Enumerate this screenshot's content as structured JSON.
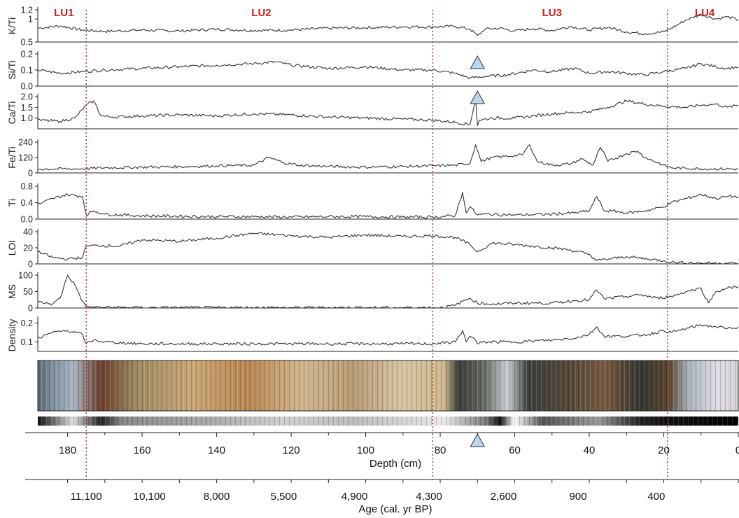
{
  "chart_data": {
    "type": "line",
    "x_axis": {
      "label": "Depth (cm)",
      "reversed": true,
      "range": [
        0,
        188
      ],
      "ticks": [
        180,
        160,
        140,
        120,
        100,
        80,
        60,
        40,
        20,
        0
      ]
    },
    "age_axis": {
      "label": "Age (cal. yr BP)",
      "ticks": [
        {
          "depth": 175,
          "label": "11,100"
        },
        {
          "depth": 158,
          "label": "10,100"
        },
        {
          "depth": 140,
          "label": "8,000"
        },
        {
          "depth": 122,
          "label": "5,500"
        },
        {
          "depth": 103,
          "label": "4,900"
        },
        {
          "depth": 83,
          "label": "4,300"
        },
        {
          "depth": 63,
          "label": "2,600"
        },
        {
          "depth": 43,
          "label": "900"
        },
        {
          "depth": 22,
          "label": "400"
        }
      ]
    },
    "units": [
      {
        "label": "LU1",
        "depth": 181
      },
      {
        "label": "LU2",
        "depth": 128
      },
      {
        "label": "LU3",
        "depth": 50
      },
      {
        "label": "LU4",
        "depth": 9
      }
    ],
    "boundaries": [
      175,
      82,
      19
    ],
    "markers": {
      "depth": 70,
      "label": "triangle"
    },
    "series": [
      {
        "name": "K/Ti",
        "ylim": [
          0.5,
          1.2
        ],
        "ticks": [
          "0.5",
          "1",
          "1.2"
        ],
        "ticks_v": [
          0.5,
          1,
          1.2
        ],
        "x": [
          188,
          182,
          176,
          170,
          160,
          150,
          140,
          130,
          120,
          110,
          100,
          90,
          82,
          76,
          72,
          70,
          68,
          64,
          60,
          55,
          50,
          45,
          40,
          35,
          30,
          25,
          20,
          18,
          14,
          10,
          6,
          3,
          0
        ],
        "y": [
          0.8,
          0.85,
          0.76,
          0.73,
          0.76,
          0.74,
          0.78,
          0.75,
          0.76,
          0.8,
          0.81,
          0.83,
          0.83,
          0.84,
          0.78,
          0.64,
          0.78,
          0.8,
          0.74,
          0.79,
          0.75,
          0.84,
          0.76,
          0.82,
          0.72,
          0.68,
          0.72,
          0.8,
          0.98,
          1.1,
          1.0,
          1.05,
          0.98
        ]
      },
      {
        "name": "Si/Ti",
        "ylim": [
          0.0,
          0.2
        ],
        "ticks": [
          "0.0",
          "0.1",
          "0.2"
        ],
        "ticks_v": [
          0.0,
          0.1,
          0.2
        ],
        "x": [
          188,
          182,
          176,
          170,
          160,
          150,
          140,
          130,
          124,
          120,
          110,
          100,
          90,
          82,
          76,
          72,
          68,
          62,
          55,
          50,
          44,
          40,
          35,
          30,
          25,
          20,
          14,
          10,
          6,
          3,
          0
        ],
        "y": [
          0.1,
          0.08,
          0.09,
          0.1,
          0.11,
          0.12,
          0.13,
          0.14,
          0.15,
          0.13,
          0.11,
          0.12,
          0.1,
          0.1,
          0.08,
          0.05,
          0.06,
          0.07,
          0.1,
          0.09,
          0.11,
          0.08,
          0.09,
          0.08,
          0.07,
          0.09,
          0.11,
          0.14,
          0.12,
          0.11,
          0.12
        ]
      },
      {
        "name": "Ca/Ti",
        "ylim": [
          0.5,
          2.0
        ],
        "ticks": [
          "1.0",
          "1.5",
          "2.0"
        ],
        "ticks_v": [
          1.0,
          1.5,
          2.0
        ],
        "x": [
          188,
          182,
          178,
          175,
          173,
          171,
          168,
          160,
          150,
          140,
          130,
          120,
          110,
          100,
          90,
          82,
          76,
          72,
          70.5,
          70,
          69.5,
          66,
          60,
          55,
          50,
          45,
          40,
          35,
          30,
          25,
          20,
          14,
          10,
          6,
          3,
          0
        ],
        "y": [
          0.9,
          0.85,
          1.0,
          1.6,
          1.8,
          1.1,
          1.05,
          1.1,
          1.15,
          1.1,
          1.2,
          1.15,
          1.05,
          1.0,
          0.95,
          0.9,
          0.8,
          0.7,
          1.9,
          0.65,
          0.9,
          1.0,
          1.0,
          1.1,
          1.2,
          1.25,
          1.3,
          1.5,
          1.8,
          1.65,
          1.55,
          1.5,
          1.6,
          1.65,
          1.5,
          1.6
        ]
      },
      {
        "name": "Fe/Ti",
        "ylim": [
          0,
          240
        ],
        "ticks": [
          "0",
          "120",
          "240"
        ],
        "ticks_v": [
          0,
          120,
          240
        ],
        "x": [
          188,
          176,
          170,
          160,
          150,
          140,
          130,
          126,
          122,
          118,
          110,
          100,
          90,
          82,
          76,
          72,
          70.5,
          69,
          66,
          62,
          58,
          56,
          54,
          50,
          45,
          42,
          39,
          37,
          35,
          30,
          27,
          25,
          20,
          18,
          10,
          0
        ],
        "y": [
          30,
          32,
          40,
          45,
          48,
          55,
          60,
          120,
          80,
          60,
          50,
          45,
          50,
          55,
          60,
          75,
          220,
          90,
          120,
          130,
          140,
          220,
          90,
          60,
          70,
          110,
          60,
          200,
          90,
          150,
          170,
          120,
          60,
          40,
          32,
          30
        ]
      },
      {
        "name": "Ti",
        "ylim": [
          0.0,
          0.8
        ],
        "ticks": [
          "0.0",
          "0.4",
          "0.8"
        ],
        "ticks_v": [
          0.0,
          0.4,
          0.8
        ],
        "x": [
          188,
          184,
          180,
          176,
          175,
          173,
          170,
          160,
          150,
          140,
          130,
          120,
          110,
          100,
          90,
          82,
          76,
          74,
          73,
          72,
          70,
          68,
          60,
          50,
          44,
          40,
          38,
          36,
          34,
          30,
          25,
          20,
          18,
          14,
          10,
          6,
          3,
          0
        ],
        "y": [
          0.35,
          0.5,
          0.6,
          0.55,
          0.1,
          0.2,
          0.12,
          0.08,
          0.07,
          0.06,
          0.06,
          0.05,
          0.06,
          0.06,
          0.05,
          0.05,
          0.08,
          0.65,
          0.15,
          0.3,
          0.1,
          0.12,
          0.1,
          0.12,
          0.15,
          0.2,
          0.55,
          0.2,
          0.2,
          0.15,
          0.2,
          0.3,
          0.4,
          0.5,
          0.6,
          0.5,
          0.55,
          0.55
        ]
      },
      {
        "name": "LOI",
        "ylim": [
          0,
          40
        ],
        "ticks": [
          "0",
          "20",
          "40"
        ],
        "ticks_v": [
          0,
          20,
          40
        ],
        "x": [
          188,
          184,
          180,
          176,
          175,
          172,
          166,
          160,
          150,
          140,
          130,
          120,
          110,
          100,
          90,
          82,
          76,
          72,
          70,
          66,
          60,
          50,
          46,
          40,
          38,
          30,
          24,
          20,
          18,
          10,
          0
        ],
        "y": [
          15,
          8,
          6,
          8,
          22,
          23,
          22,
          30,
          28,
          32,
          38,
          35,
          33,
          36,
          34,
          35,
          33,
          24,
          15,
          26,
          24,
          20,
          18,
          12,
          4,
          9,
          6,
          4,
          2,
          1,
          1
        ]
      },
      {
        "name": "MS",
        "ylim": [
          0,
          100
        ],
        "ticks": [
          "0",
          "50",
          "100"
        ],
        "ticks_v": [
          0,
          50,
          100
        ],
        "x": [
          188,
          184,
          182,
          180,
          178,
          176,
          175,
          170,
          160,
          150,
          120,
          100,
          90,
          80,
          76,
          74,
          72,
          70,
          66,
          60,
          50,
          44,
          40,
          38,
          36,
          30,
          26,
          22,
          18,
          14,
          10,
          8,
          6,
          3,
          0
        ],
        "y": [
          18,
          12,
          30,
          100,
          70,
          20,
          3,
          2,
          1,
          1,
          1,
          1,
          1,
          1,
          8,
          20,
          30,
          15,
          12,
          15,
          15,
          22,
          25,
          55,
          28,
          35,
          40,
          30,
          35,
          50,
          60,
          15,
          50,
          60,
          65
        ]
      },
      {
        "name": "Density",
        "ylim": [
          0.05,
          0.22
        ],
        "ticks": [
          "0.1",
          "0.2"
        ],
        "ticks_v": [
          0.1,
          0.2
        ],
        "x": [
          188,
          184,
          180,
          176,
          175,
          173,
          170,
          160,
          150,
          140,
          130,
          120,
          110,
          100,
          90,
          82,
          76,
          74,
          73,
          72,
          71,
          70,
          68,
          60,
          50,
          44,
          40,
          38,
          36,
          30,
          24,
          20,
          18,
          14,
          10,
          6,
          3,
          0
        ],
        "y": [
          0.12,
          0.15,
          0.16,
          0.14,
          0.09,
          0.11,
          0.1,
          0.09,
          0.09,
          0.09,
          0.09,
          0.09,
          0.09,
          0.09,
          0.09,
          0.09,
          0.1,
          0.16,
          0.1,
          0.13,
          0.12,
          0.09,
          0.1,
          0.1,
          0.11,
          0.12,
          0.14,
          0.18,
          0.13,
          0.13,
          0.14,
          0.16,
          0.15,
          0.17,
          0.19,
          0.18,
          0.17,
          0.18
        ]
      }
    ]
  }
}
